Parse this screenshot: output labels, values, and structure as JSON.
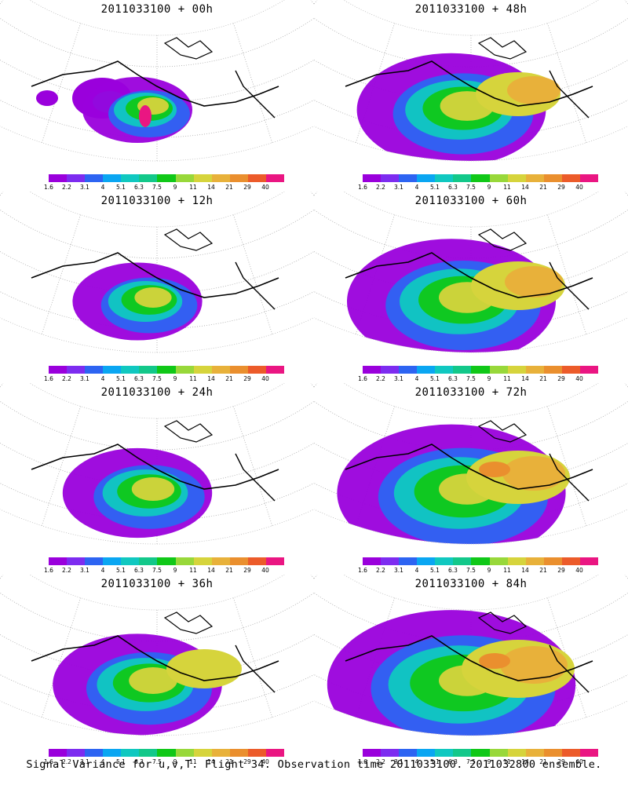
{
  "colorbar": {
    "colors": [
      "#9a00dc",
      "#7d2cf0",
      "#2d64f2",
      "#0aa6f2",
      "#10c8c0",
      "#13c88a",
      "#10c818",
      "#98d83a",
      "#d6d43c",
      "#e8b13a",
      "#ea8f2e",
      "#ec5b2a",
      "#ea1682"
    ],
    "labels": [
      "1.6",
      "2.2",
      "3.1",
      "4",
      "5.1",
      "6.3",
      "7.5",
      "9",
      "11",
      "14",
      "21",
      "29",
      "40"
    ]
  },
  "panels": [
    {
      "id": "p00",
      "title": "2011033100 + 00h",
      "level": 0
    },
    {
      "id": "p48",
      "title": "2011033100 + 48h",
      "level": 4
    },
    {
      "id": "p12",
      "title": "2011033100 + 12h",
      "level": 1
    },
    {
      "id": "p60",
      "title": "2011033100 + 60h",
      "level": 5
    },
    {
      "id": "p24",
      "title": "2011033100 + 24h",
      "level": 2
    },
    {
      "id": "p72",
      "title": "2011033100 + 72h",
      "level": 6
    },
    {
      "id": "p36",
      "title": "2011033100 + 36h",
      "level": 3
    },
    {
      "id": "p84",
      "title": "2011033100 + 84h",
      "level": 7
    }
  ],
  "footer": "Signal Variance for u,v,T. Flight 34. Observation time 2011033100. 2011032800 ensemble."
}
